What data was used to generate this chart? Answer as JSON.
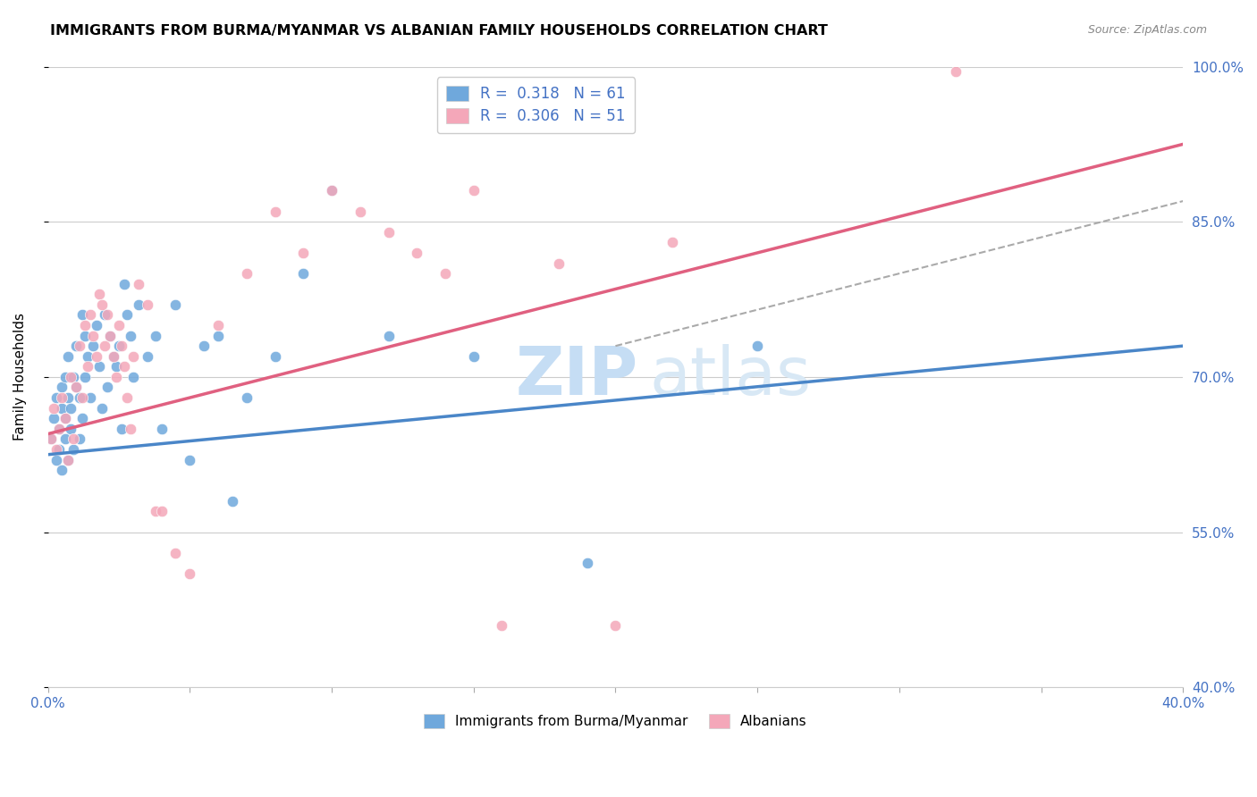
{
  "title": "IMMIGRANTS FROM BURMA/MYANMAR VS ALBANIAN FAMILY HOUSEHOLDS CORRELATION CHART",
  "source": "Source: ZipAtlas.com",
  "ylabel": "Family Households",
  "x_min": 0.0,
  "x_max": 0.4,
  "y_min": 0.4,
  "y_max": 1.0,
  "yticks": [
    0.4,
    0.55,
    0.7,
    0.85,
    1.0
  ],
  "ytick_labels": [
    "40.0%",
    "55.0%",
    "70.0%",
    "85.0%",
    "100.0%"
  ],
  "xticks": [
    0.0,
    0.05,
    0.1,
    0.15,
    0.2,
    0.25,
    0.3,
    0.35,
    0.4
  ],
  "xtick_labels": [
    "0.0%",
    "",
    "",
    "",
    "",
    "",
    "",
    "",
    "40.0%"
  ],
  "legend_r1_val": "0.318",
  "legend_n1_val": "61",
  "legend_r2_val": "0.306",
  "legend_n2_val": "51",
  "color_blue": "#6fa8dc",
  "color_pink": "#f4a7b9",
  "color_blue_line": "#4a86c8",
  "color_pink_line": "#e06080",
  "color_gray_dashed": "#aaaaaa",
  "watermark_zip": "ZIP",
  "watermark_atlas": "atlas",
  "blue_dots_x": [
    0.001,
    0.002,
    0.003,
    0.003,
    0.004,
    0.004,
    0.005,
    0.005,
    0.005,
    0.006,
    0.006,
    0.006,
    0.007,
    0.007,
    0.007,
    0.008,
    0.008,
    0.009,
    0.009,
    0.01,
    0.01,
    0.011,
    0.011,
    0.012,
    0.012,
    0.013,
    0.013,
    0.014,
    0.015,
    0.016,
    0.017,
    0.018,
    0.019,
    0.02,
    0.021,
    0.022,
    0.023,
    0.024,
    0.025,
    0.026,
    0.027,
    0.028,
    0.029,
    0.03,
    0.032,
    0.035,
    0.038,
    0.04,
    0.045,
    0.05,
    0.055,
    0.06,
    0.065,
    0.07,
    0.08,
    0.09,
    0.1,
    0.12,
    0.15,
    0.19,
    0.25
  ],
  "blue_dots_y": [
    0.64,
    0.66,
    0.62,
    0.68,
    0.65,
    0.63,
    0.67,
    0.61,
    0.69,
    0.7,
    0.64,
    0.66,
    0.62,
    0.68,
    0.72,
    0.65,
    0.67,
    0.63,
    0.7,
    0.69,
    0.73,
    0.68,
    0.64,
    0.76,
    0.66,
    0.74,
    0.7,
    0.72,
    0.68,
    0.73,
    0.75,
    0.71,
    0.67,
    0.76,
    0.69,
    0.74,
    0.72,
    0.71,
    0.73,
    0.65,
    0.79,
    0.76,
    0.74,
    0.7,
    0.77,
    0.72,
    0.74,
    0.65,
    0.77,
    0.62,
    0.73,
    0.74,
    0.58,
    0.68,
    0.72,
    0.8,
    0.88,
    0.74,
    0.72,
    0.52,
    0.73
  ],
  "pink_dots_x": [
    0.001,
    0.002,
    0.003,
    0.004,
    0.005,
    0.006,
    0.007,
    0.008,
    0.009,
    0.01,
    0.011,
    0.012,
    0.013,
    0.014,
    0.015,
    0.016,
    0.017,
    0.018,
    0.019,
    0.02,
    0.021,
    0.022,
    0.023,
    0.024,
    0.025,
    0.026,
    0.027,
    0.028,
    0.029,
    0.03,
    0.032,
    0.035,
    0.038,
    0.04,
    0.045,
    0.05,
    0.06,
    0.07,
    0.08,
    0.09,
    0.1,
    0.11,
    0.12,
    0.13,
    0.14,
    0.15,
    0.16,
    0.18,
    0.2,
    0.22,
    0.32
  ],
  "pink_dots_y": [
    0.64,
    0.67,
    0.63,
    0.65,
    0.68,
    0.66,
    0.62,
    0.7,
    0.64,
    0.69,
    0.73,
    0.68,
    0.75,
    0.71,
    0.76,
    0.74,
    0.72,
    0.78,
    0.77,
    0.73,
    0.76,
    0.74,
    0.72,
    0.7,
    0.75,
    0.73,
    0.71,
    0.68,
    0.65,
    0.72,
    0.79,
    0.77,
    0.57,
    0.57,
    0.53,
    0.51,
    0.75,
    0.8,
    0.86,
    0.82,
    0.88,
    0.86,
    0.84,
    0.82,
    0.8,
    0.88,
    0.46,
    0.81,
    0.46,
    0.83,
    0.995
  ],
  "blue_line_x": [
    0.0,
    0.4
  ],
  "blue_line_y": [
    0.625,
    0.73
  ],
  "pink_line_x": [
    0.0,
    0.4
  ],
  "pink_line_y": [
    0.645,
    0.925
  ],
  "gray_dash_line_x": [
    0.2,
    0.4
  ],
  "gray_dash_line_y": [
    0.73,
    0.87
  ]
}
